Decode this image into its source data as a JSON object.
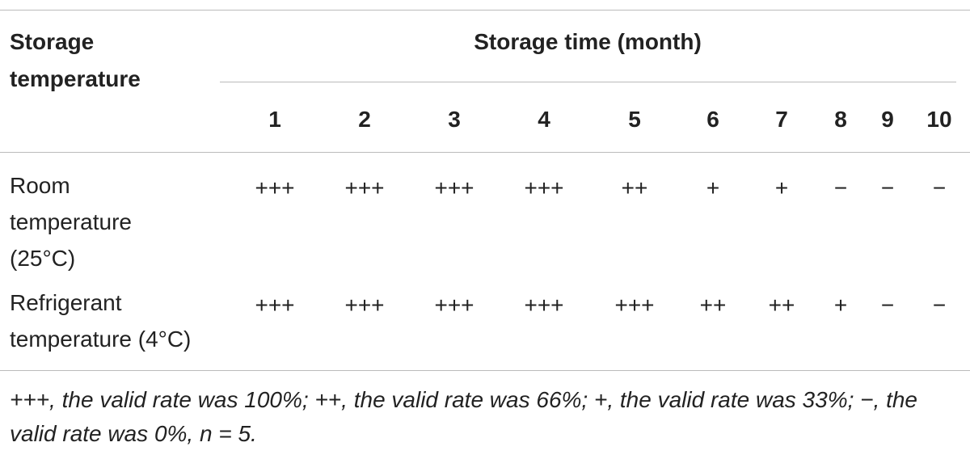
{
  "header": {
    "row_header": [
      "Storage",
      "temperature"
    ],
    "group": "Storage time (month)",
    "columns": [
      "1",
      "2",
      "3",
      "4",
      "5",
      "6",
      "7",
      "8",
      "9",
      "10"
    ]
  },
  "rows": [
    {
      "label": [
        "Room",
        "temperature",
        "(25°C)"
      ],
      "cells": [
        "+++",
        "+++",
        "+++",
        "+++",
        "++",
        "+",
        "+",
        "−",
        "−",
        "−"
      ]
    },
    {
      "label": [
        "Refrigerant",
        "temperature (4°C)"
      ],
      "cells": [
        "+++",
        "+++",
        "+++",
        "+++",
        "+++",
        "++",
        "++",
        "+",
        "−",
        "−"
      ]
    }
  ],
  "footnote": "+++, the valid rate was 100%; ++, the valid rate was 66%; +, the valid rate was 33%; −, the valid rate was 0%, n = 5."
}
